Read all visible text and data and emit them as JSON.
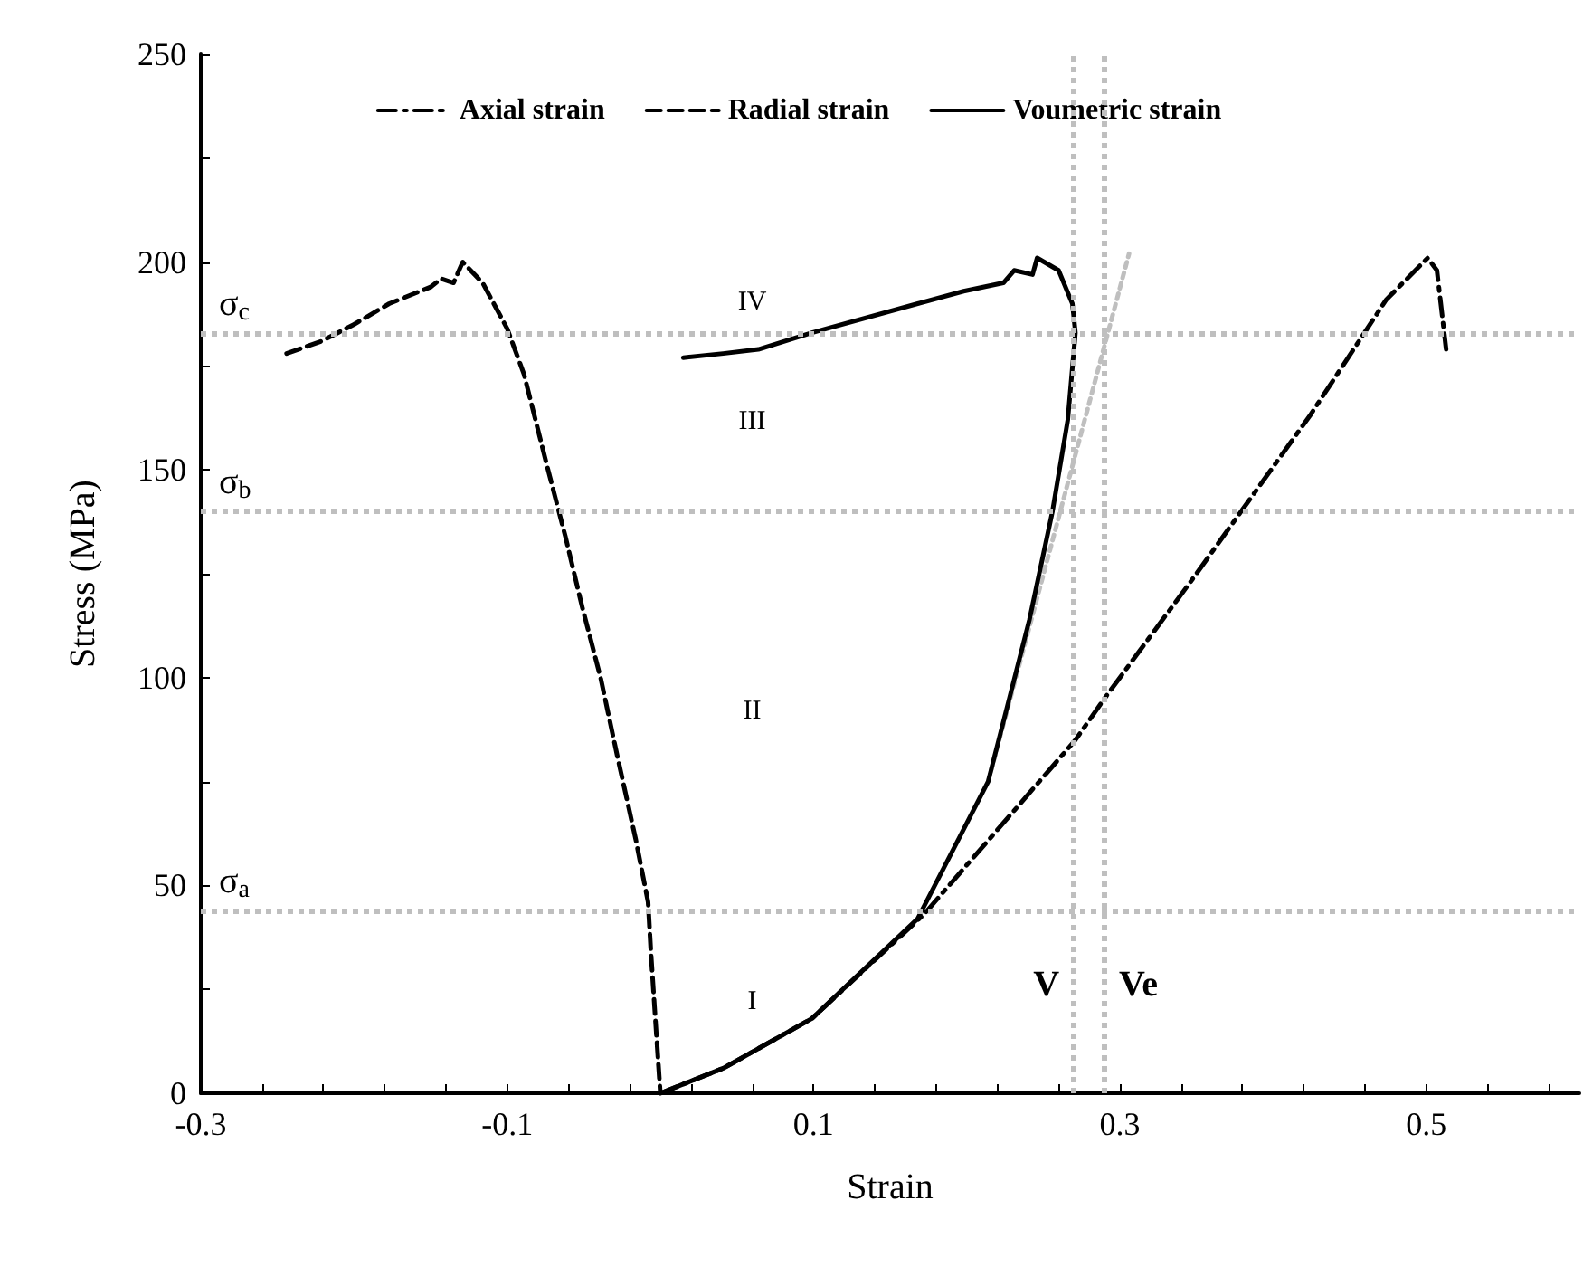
{
  "chart_data": {
    "type": "line",
    "xlabel": "Strain",
    "ylabel": "Stress (MPa)",
    "xlim": [
      -0.3,
      0.6
    ],
    "ylim": [
      0,
      250
    ],
    "xticks": [
      -0.3,
      {
        "value": -0.26,
        "label": null
      },
      {
        "value": -0.22,
        "label": null
      },
      {
        "value": -0.18,
        "label": null
      },
      {
        "value": -0.14,
        "label": null
      },
      -0.1,
      {
        "value": -0.06,
        "label": null
      },
      {
        "value": -0.02,
        "label": null
      },
      {
        "value": 0.02,
        "label": null
      },
      {
        "value": 0.06,
        "label": null
      },
      0.1,
      {
        "value": 0.14,
        "label": null
      },
      {
        "value": 0.18,
        "label": null
      },
      {
        "value": 0.22,
        "label": null
      },
      {
        "value": 0.26,
        "label": null
      },
      0.3,
      {
        "value": 0.34,
        "label": null
      },
      {
        "value": 0.38,
        "label": null
      },
      {
        "value": 0.42,
        "label": null
      },
      {
        "value": 0.46,
        "label": null
      },
      0.5,
      {
        "value": 0.54,
        "label": null
      },
      {
        "value": 0.58,
        "label": null
      }
    ],
    "yticks": [
      0,
      {
        "value": 25,
        "label": null
      },
      50,
      {
        "value": 75,
        "label": null
      },
      100,
      {
        "value": 125,
        "label": null
      },
      150,
      {
        "value": 175,
        "label": null
      },
      200,
      {
        "value": 225,
        "label": null
      },
      250
    ],
    "grid": false,
    "legend": "top",
    "marker": "none",
    "series": [
      {
        "name": "Axial strain",
        "color": "#000000",
        "line_style": "dashdot",
        "x": [
          0,
          0.041,
          0.099,
          0.172,
          0.271,
          0.29,
          0.348,
          0.424,
          0.474,
          0.501,
          0.507,
          0.513
        ],
        "values": [
          0,
          6,
          18,
          43,
          85,
          95,
          124,
          163,
          191,
          201,
          198,
          179
        ]
      },
      {
        "name": "Radial strain",
        "color": "#000000",
        "line_style": "dashed",
        "x": [
          -0.244,
          -0.221,
          -0.2,
          -0.177,
          -0.15,
          -0.143,
          -0.135,
          -0.129,
          -0.116,
          -0.1,
          -0.089,
          -0.074,
          -0.062,
          -0.051,
          -0.039,
          -0.028,
          -0.016,
          -0.008,
          -0.006,
          0
        ],
        "values": [
          178,
          181,
          185,
          190,
          194,
          196,
          195,
          200,
          195,
          184,
          173,
          151,
          134,
          117,
          100,
          81,
          61,
          46,
          33,
          0
        ]
      },
      {
        "name": "Voumetric strain",
        "color": "#000000",
        "line_style": "solid",
        "x": [
          0,
          0.041,
          0.099,
          0.168,
          0.214,
          0.241,
          0.256,
          0.266,
          0.271,
          0.269,
          0.26,
          0.246,
          0.243,
          0.231,
          0.224,
          0.198,
          0.168,
          0.099,
          0.064,
          0.041,
          0.015
        ],
        "values": [
          0,
          6,
          18,
          42,
          75,
          114,
          140,
          162,
          183,
          190,
          198,
          201,
          197,
          198,
          195,
          193,
          190,
          183,
          179,
          178,
          177
        ]
      },
      {
        "type": "line",
        "color": "#bfbfbf",
        "line_style": "dotted",
        "x": [
          0.214,
          0.306
        ],
        "values": [
          75,
          202
        ]
      }
    ],
    "ref_lines": [
      {
        "axis": "y",
        "value": 44,
        "label": "σ$_{a}$",
        "color": "#bfbfbf",
        "line_style": "dotted"
      },
      {
        "axis": "y",
        "value": 140,
        "label": "σ$_{b}$",
        "color": "#bfbfbf",
        "line_style": "dotted"
      },
      {
        "axis": "y",
        "value": 183,
        "label": "σ$_{c}$",
        "color": "#bfbfbf",
        "line_style": "dotted"
      },
      {
        "axis": "x",
        "value": 0.27,
        "label": "V",
        "color": "#bfbfbf",
        "line_style": "dotted"
      },
      {
        "axis": "x",
        "value": 0.29,
        "label": "Ve",
        "color": "#bfbfbf",
        "line_style": "dotted"
      }
    ],
    "annotations": [
      "I",
      "II",
      "III",
      "IV"
    ]
  }
}
